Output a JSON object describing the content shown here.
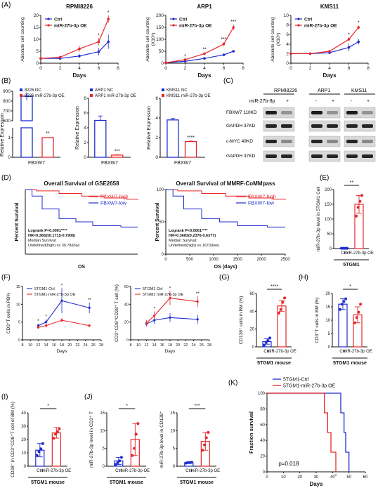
{
  "panels": {
    "A": "(A)",
    "B": "(B)",
    "C": "(C)",
    "D": "(D)",
    "E": "(E)",
    "F": "(F)",
    "G": "(G)",
    "H": "(H)",
    "I": "(I)",
    "J": "(J)",
    "K": "(K)"
  },
  "colors": {
    "ctrl": "#1f2ccf",
    "oe": "#e8262a",
    "black": "#111111"
  },
  "chart_data": [
    {
      "id": "A1",
      "type": "line",
      "title": "RPMI8226",
      "xlabel": "Days",
      "ylabel": "Absolute cell counting",
      "x": [
        0,
        2,
        4,
        6,
        7
      ],
      "xticks": [
        0,
        2,
        4,
        6,
        8
      ],
      "yticks": [
        0,
        5,
        10,
        15,
        20
      ],
      "xlim": [
        0,
        8
      ],
      "ylim": [
        0,
        20
      ],
      "sig": [
        "*",
        "*"
      ],
      "series": [
        {
          "name": "Ctrl",
          "values": [
            2,
            2,
            3,
            4.8,
            9
          ],
          "err": [
            0.3,
            0.4,
            0.8,
            1.5,
            3
          ]
        },
        {
          "name": "miR-27b-3p OE",
          "values": [
            2,
            2.5,
            6,
            9,
            18.5
          ],
          "err": [
            0.3,
            0.5,
            1.2,
            1.5,
            1.5
          ]
        }
      ]
    },
    {
      "id": "A2",
      "type": "line",
      "title": "ARP1",
      "xlabel": "Days",
      "ylabel": "Absolute cell counting",
      "yunit": "(X10⁵)",
      "x": [
        0,
        2,
        4,
        6,
        7
      ],
      "xticks": [
        0,
        2,
        4,
        6,
        8
      ],
      "yticks": [
        0,
        50,
        100,
        150,
        200
      ],
      "xlim": [
        0,
        8
      ],
      "ylim": [
        0,
        200
      ],
      "sig": [
        "*",
        "**",
        "***",
        "***"
      ],
      "series": [
        {
          "name": "Ctrl",
          "values": [
            2,
            8,
            20,
            35,
            50
          ],
          "err": [
            1,
            2,
            3,
            4,
            4
          ]
        },
        {
          "name": "miR-27b-3p OE",
          "values": [
            2,
            15,
            40,
            80,
            150
          ],
          "err": [
            1,
            3,
            5,
            8,
            12
          ]
        }
      ]
    },
    {
      "id": "A3",
      "type": "line",
      "title": "KMS11",
      "xlabel": "Days",
      "ylabel": "Absolute cell counting",
      "yunit": "(X10⁵)",
      "x": [
        0,
        2,
        4,
        6,
        7
      ],
      "xticks": [
        0,
        2,
        4,
        6,
        8
      ],
      "yticks": [
        0,
        2,
        4,
        6,
        8,
        10
      ],
      "xlim": [
        0,
        8
      ],
      "ylim": [
        0,
        10
      ],
      "sig": [
        "*",
        "*"
      ],
      "series": [
        {
          "name": "Ctrl",
          "values": [
            2,
            2,
            2.2,
            3.3,
            4.5
          ],
          "err": [
            0.2,
            0.2,
            0.3,
            0.8,
            0.6
          ]
        },
        {
          "name": "miR-27b-3p OE",
          "values": [
            2,
            2,
            2.5,
            5,
            7.5
          ],
          "err": [
            0.2,
            0.2,
            0.3,
            0.4,
            0.4
          ]
        }
      ]
    },
    {
      "id": "B1",
      "type": "bar",
      "categories": [
        "FBXW7"
      ],
      "xlabel": "FBXW7",
      "ylabel": "Relative Expression",
      "yticks_top": [
        600,
        700,
        800,
        900
      ],
      "yticks_bottom": [
        0,
        1
      ],
      "sig": "**",
      "series": [
        {
          "name": "8226 NC",
          "values": [
            850
          ],
          "err": [
            40
          ]
        },
        {
          "name": "8226 miR-27b-3p OE",
          "values": [
            1
          ],
          "err": [
            0.05
          ]
        }
      ]
    },
    {
      "id": "B2",
      "type": "bar",
      "categories": [
        "FBXW7"
      ],
      "xlabel": "FBXW7",
      "ylabel": "Relative Expression",
      "yticks": [
        0,
        2,
        4,
        6,
        8
      ],
      "ylim": [
        0,
        8
      ],
      "sig": "***",
      "series": [
        {
          "name": "ARP1 NC",
          "values": [
            5
          ],
          "err": [
            0.6
          ]
        },
        {
          "name": "ARP1 miR-27b-3p OE",
          "values": [
            0.3
          ],
          "err": [
            0.05
          ]
        }
      ]
    },
    {
      "id": "B3",
      "type": "bar",
      "categories": [
        "FBXW7"
      ],
      "xlabel": "FBXW7",
      "ylabel": "Relative Expression",
      "yticks": [
        0,
        2,
        4,
        6
      ],
      "ylim": [
        0,
        6
      ],
      "sig": "****",
      "series": [
        {
          "name": "KMS11 NC",
          "values": [
            3.8
          ],
          "err": [
            0.15
          ]
        },
        {
          "name": "KMS11 miR-27b-3p OE",
          "values": [
            1.6
          ],
          "err": [
            0.05
          ]
        }
      ]
    },
    {
      "id": "D1",
      "type": "line",
      "title": "Overall Survival of GSE2658",
      "xlabel": "OS",
      "ylabel": "Percent Survival",
      "legend": [
        "FBXW7-high",
        "FBXW7-low"
      ],
      "stats": [
        "Logrank P=0.0001****",
        "HR=0.3682(0.1715-0.7906)",
        "Median Survival:",
        "Undefined(high) vs 39.78(low)"
      ]
    },
    {
      "id": "D2",
      "type": "line",
      "title": "Overall Survival of MMRF-CoMMpass",
      "xlabel": "OS (days)",
      "ylabel": "Percent Survival",
      "xticks": [
        0,
        500,
        1000,
        1500,
        2000,
        2500
      ],
      "xlim": [
        0,
        2500
      ],
      "yticks": [
        0,
        50,
        100
      ],
      "ylim": [
        0,
        100
      ],
      "legend": [
        "FBXW7-high",
        "FBXW7-low"
      ],
      "stats": [
        "Logrank P<0.0001****",
        "HR=0.3683(0.2376-0.6377)",
        "Median Survival:",
        "Undefined(high) vs 1670(low)"
      ]
    },
    {
      "id": "E",
      "type": "bar",
      "categories": [
        "Ctrl",
        "miR-27b-3p OE"
      ],
      "xlabel": "5TGM1",
      "ylabel": "miR-27b-3p level in 5TGM1 Cell",
      "yticks": [
        0,
        1,
        50,
        100,
        150,
        200
      ],
      "sig": "**",
      "values": [
        1,
        150
      ],
      "err": [
        0.05,
        30
      ],
      "points": [
        [
          1,
          1,
          1,
          1
        ],
        [
          110,
          140,
          160,
          180
        ]
      ]
    },
    {
      "id": "F1",
      "type": "line",
      "xlabel": "Days",
      "ylabel": "CD3⁺T cells in PB%",
      "x": [
        12,
        14,
        18,
        25
      ],
      "xticks": [
        8,
        10,
        12,
        14,
        16,
        18,
        20,
        22,
        24,
        26,
        28
      ],
      "xlim": [
        8,
        28
      ],
      "ylim": [
        0,
        15
      ],
      "sig": [
        "*",
        "*",
        "*",
        "**"
      ],
      "series": [
        {
          "name": "5TGM1-Ctrl",
          "values": [
            4,
            5,
            11,
            9
          ],
          "err": [
            0.5,
            0.8,
            3.5,
            1.5
          ]
        },
        {
          "name": "5TGM1-miR-27b-3p OE",
          "values": [
            3.5,
            4,
            5.5,
            4
          ],
          "err": [
            0.4,
            0.5,
            0.6,
            0.4
          ]
        }
      ]
    },
    {
      "id": "F2",
      "type": "line",
      "xlabel": "Days",
      "ylabel": "CD3⁺CD8⁺CD28⁺ T cell (%)",
      "x": [
        12,
        14,
        18,
        25
      ],
      "xticks": [
        8,
        10,
        12,
        14,
        16,
        18,
        20,
        22,
        24,
        26,
        28
      ],
      "yticks": [
        0,
        20,
        40,
        60
      ],
      "xlim": [
        8,
        28
      ],
      "ylim": [
        0,
        60
      ],
      "sig": [
        "*",
        "*",
        "**"
      ],
      "series": [
        {
          "name": "5TGM1 Ctrl",
          "values": [
            18,
            22,
            25,
            23
          ],
          "err": [
            3,
            4,
            5,
            5
          ]
        },
        {
          "name": "5TGM1 miR-27b-3p OE",
          "values": [
            19,
            27,
            47,
            43
          ],
          "err": [
            3,
            5,
            8,
            6
          ]
        }
      ]
    },
    {
      "id": "G",
      "type": "bar",
      "categories": [
        "Ctrl",
        "miR-27b-3p OE"
      ],
      "xlabel": "5TGM1 mouse",
      "ylabel": "CD138⁺ cells in BM (%)",
      "yticks": [
        0,
        20,
        40,
        60
      ],
      "ylim": [
        0,
        60
      ],
      "sig": "****",
      "values": [
        6,
        46
      ],
      "err": [
        3,
        6
      ],
      "points": [
        [
          2,
          5,
          7,
          10
        ],
        [
          38,
          42,
          50,
          55
        ]
      ]
    },
    {
      "id": "H",
      "type": "bar",
      "categories": [
        "Ctrl",
        "miR-27b-3p OE"
      ],
      "xlabel": "5TGM1 mouse",
      "ylabel": "CD3⁺T cells in BM (%)",
      "yticks": [
        0,
        5,
        10,
        15,
        20
      ],
      "ylim": [
        0,
        20
      ],
      "sig": "*",
      "values": [
        16,
        12
      ],
      "err": [
        2,
        3
      ],
      "points": [
        [
          14,
          16,
          17,
          18
        ],
        [
          9,
          11,
          13,
          16
        ]
      ]
    },
    {
      "id": "I",
      "type": "bar",
      "categories": [
        "Ctrl",
        "miR-27b-3p OE"
      ],
      "xlabel": "5TGM1 mouse",
      "ylabel": "CD28⁻ in CD3⁺CD8⁺T cell of BM (%)",
      "yticks": [
        0,
        10,
        20,
        30,
        40
      ],
      "ylim": [
        0,
        40
      ],
      "sig": "*",
      "values": [
        12,
        25
      ],
      "err": [
        5,
        4
      ],
      "points": [
        [
          8,
          11,
          13,
          17
        ],
        [
          21,
          24,
          26,
          28
        ]
      ]
    },
    {
      "id": "J1",
      "type": "bar",
      "categories": [
        "Ctrl",
        "miR-27b-3p OE"
      ],
      "xlabel": "5TGM1 mouse",
      "ylabel": "miR-27b-3p level in CD3⁺ T",
      "yticks": [
        0,
        5,
        10,
        15
      ],
      "ylim": [
        0,
        15
      ],
      "sig": "*",
      "values": [
        1.5,
        7.5
      ],
      "err": [
        1,
        4.5
      ],
      "points": [
        [
          0.5,
          1,
          1.5,
          2.5
        ],
        [
          3,
          5,
          9,
          12
        ]
      ]
    },
    {
      "id": "J2",
      "type": "bar",
      "categories": [
        "Ctrl",
        "miR-27b-3p OE"
      ],
      "xlabel": "5TGM1 mouse",
      "ylabel": "miR-27b-3p level in CD138⁺",
      "yticks": [
        0,
        5,
        10,
        15
      ],
      "ylim": [
        0,
        15
      ],
      "sig": "***",
      "values": [
        1,
        7
      ],
      "err": [
        0.2,
        2.5
      ],
      "points": [
        [
          0.9,
          1,
          1,
          1.1
        ],
        [
          4.5,
          6,
          8,
          9.5
        ]
      ]
    },
    {
      "id": "K",
      "type": "line",
      "xlabel": "Days",
      "ylabel": "Fraction survival",
      "xticks": [
        0,
        10,
        20,
        30,
        40,
        50,
        60
      ],
      "yticks": [
        0,
        20,
        40,
        60,
        80,
        100
      ],
      "xlim": [
        0,
        60
      ],
      "ylim": [
        0,
        100
      ],
      "annotation": "p=0.018",
      "sig": "*",
      "series": [
        {
          "name": "5TGM1-Ctrl",
          "steps": [
            [
              0,
              100
            ],
            [
              45,
              100
            ],
            [
              45,
              75
            ],
            [
              47,
              75
            ],
            [
              47,
              50
            ],
            [
              48,
              50
            ],
            [
              48,
              25
            ],
            [
              50,
              25
            ],
            [
              50,
              0
            ]
          ]
        },
        {
          "name": "5TGM1-miR-27b-3p OE",
          "steps": [
            [
              0,
              100
            ],
            [
              35,
              100
            ],
            [
              35,
              75
            ],
            [
              37,
              75
            ],
            [
              37,
              50
            ],
            [
              39,
              50
            ],
            [
              39,
              25
            ],
            [
              42,
              25
            ],
            [
              42,
              0
            ]
          ]
        }
      ]
    }
  ],
  "blot": {
    "treatment_label": "miR-27b-3p",
    "lanes": [
      "RPMI8226",
      "ARP1",
      "KMS11"
    ],
    "signs": [
      "-",
      "+"
    ],
    "rows": [
      "FBXW7 110KD",
      "GAPDH 37KD",
      "c-MYC 49KD",
      "GAPDH 37KD"
    ]
  }
}
